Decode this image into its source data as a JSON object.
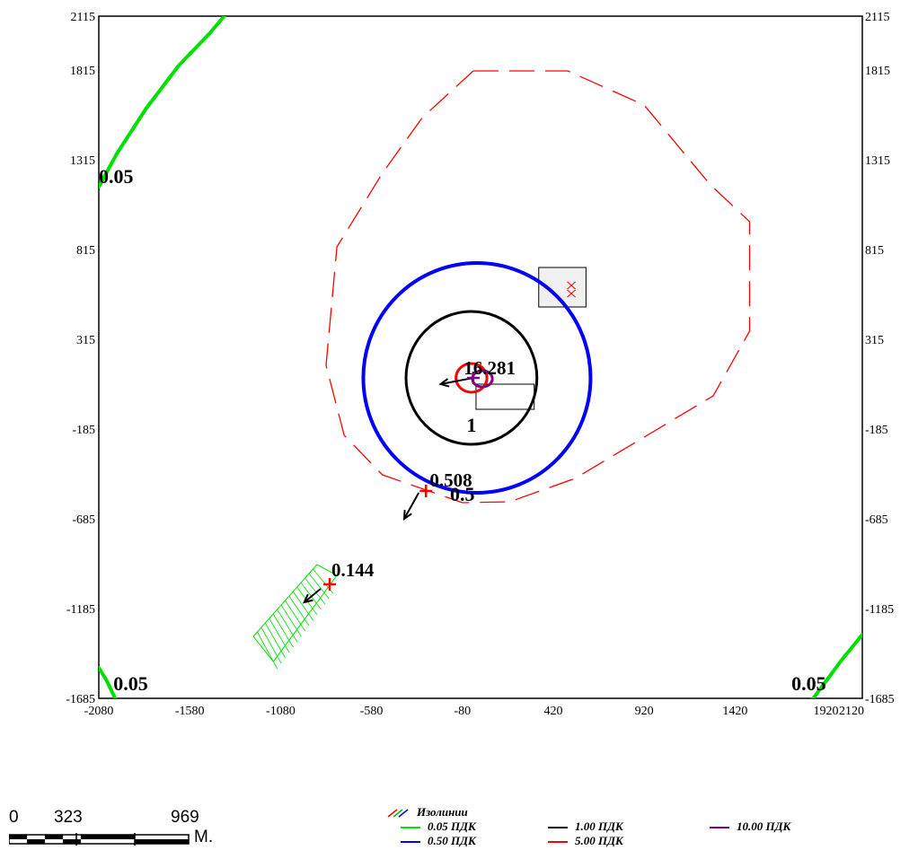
{
  "chart_data": {
    "type": "contour",
    "title": "",
    "xlabel": "",
    "ylabel": "",
    "xlim": [
      -2080,
      2120
    ],
    "ylim": [
      -1685,
      2115
    ],
    "x_ticks": [
      "-2080",
      "-1580",
      "-1080",
      "-580",
      "-80",
      "420",
      "920",
      "1420",
      "1920",
      "2120"
    ],
    "x_tick_values": [
      -2080,
      -1580,
      -1080,
      -580,
      -80,
      420,
      920,
      1420,
      1920,
      2120
    ],
    "y_ticks": [
      "2115",
      "1815",
      "1315",
      "815",
      "315",
      "-185",
      "-685",
      "-1185",
      "-1685"
    ],
    "y_tick_values": [
      2115,
      1815,
      1315,
      815,
      315,
      -185,
      -685,
      -1185,
      -1685
    ],
    "isolines": [
      {
        "level": "0.05",
        "color": "#00e000",
        "dashed": false,
        "label": "0.05",
        "paths": [
          {
            "points": [
              [
                -2080,
                1165
              ],
              [
                -1980,
                1350
              ],
              [
                -1820,
                1600
              ],
              [
                -1640,
                1840
              ],
              [
                -1470,
                2020
              ],
              [
                -1390,
                2115
              ]
            ],
            "label_at": [
              -2080,
              1185
            ]
          },
          {
            "points": [
              [
                -2080,
                -1515
              ],
              [
                -2040,
                -1580
              ],
              [
                -1990,
                -1685
              ]
            ],
            "label_at": [
              -2000,
              -1640
            ]
          },
          {
            "points": [
              [
                1850,
                -1685
              ],
              [
                1920,
                -1590
              ],
              [
                2000,
                -1480
              ],
              [
                2080,
                -1380
              ],
              [
                2120,
                -1330
              ]
            ],
            "label_at": [
              1730,
              -1640
            ]
          }
        ]
      },
      {
        "level": "0.50",
        "color": "#0000ff",
        "dashed": false,
        "label": "0.5",
        "center": [
          0,
          100
        ],
        "radius_x": 625,
        "radius_y": 640,
        "label_at": [
          -80,
          -585
        ]
      },
      {
        "level": "1.00",
        "color": "#000000",
        "dashed": false,
        "label": "1",
        "center": [
          -30,
          100
        ],
        "radius_x": 360,
        "radius_y": 370,
        "label_at": [
          -30,
          -200
        ]
      },
      {
        "level": "5.00",
        "color": "#ff0000",
        "dashed": false,
        "label": "",
        "center": [
          -30,
          100
        ],
        "radius_x": 85,
        "radius_y": 80
      },
      {
        "level": "10.00",
        "color": "#800080",
        "dashed": false,
        "label": "",
        "center": [
          30,
          95
        ],
        "radius_x": 55,
        "radius_y": 45
      }
    ],
    "dashed_zone": {
      "color": "#ff0000",
      "points": [
        [
          -20,
          1810
        ],
        [
          500,
          1810
        ],
        [
          920,
          1620
        ],
        [
          1280,
          1180
        ],
        [
          1500,
          970
        ],
        [
          1500,
          360
        ],
        [
          1300,
          0
        ],
        [
          920,
          -230
        ],
        [
          540,
          -460
        ],
        [
          180,
          -590
        ],
        [
          -80,
          -595
        ],
        [
          -520,
          -440
        ],
        [
          -730,
          -220
        ],
        [
          -830,
          170
        ],
        [
          -770,
          830
        ],
        [
          -520,
          1240
        ],
        [
          -300,
          1550
        ],
        [
          -20,
          1810
        ]
      ]
    },
    "points": [
      {
        "label": "16.281",
        "x": -20,
        "y": 100,
        "color": "#800080",
        "label_at": [
          70,
          120
        ]
      },
      {
        "label": "0.508",
        "x": -280,
        "y": -530,
        "color": "#ff0000",
        "label_at": [
          -260,
          -505
        ]
      },
      {
        "label": "0.144",
        "x": -810,
        "y": -1050,
        "color": "#ff0000",
        "label_at": [
          -800,
          -1005
        ]
      }
    ],
    "arrows": [
      {
        "from": [
          -20,
          100
        ],
        "to": [
          -200,
          65
        ]
      },
      {
        "from": [
          -320,
          -540
        ],
        "to": [
          -400,
          -685
        ]
      },
      {
        "from": [
          -860,
          -1075
        ],
        "to": [
          -950,
          -1150
        ]
      }
    ],
    "sources": [
      {
        "x": 340,
        "y": 715,
        "w": 260,
        "h": 220,
        "fill": "#f0f0f0",
        "marks": 2
      },
      {
        "x": -5,
        "y": 65,
        "w": 320,
        "h": 140,
        "fill": "none",
        "marks": 0
      }
    ],
    "hatched_area": {
      "color": "#00e000",
      "polygon": [
        [
          -880,
          -940
        ],
        [
          -770,
          -1000
        ],
        [
          -1120,
          -1480
        ],
        [
          -1230,
          -1340
        ]
      ]
    },
    "legend": {
      "title": "Изолинии",
      "position": "bottom",
      "entries": [
        {
          "label": "0.05 ПДК",
          "color": "#00e000"
        },
        {
          "label": "0.50 ПДК",
          "color": "#0000ff"
        },
        {
          "label": "1.00 ПДК",
          "color": "#000000"
        },
        {
          "label": "5.00 ПДК",
          "color": "#ff0000"
        },
        {
          "label": "10.00 ПДК",
          "color": "#800080"
        }
      ]
    }
  },
  "scale_bar": {
    "labels": [
      "0",
      "323",
      "969"
    ],
    "unit": "М."
  }
}
